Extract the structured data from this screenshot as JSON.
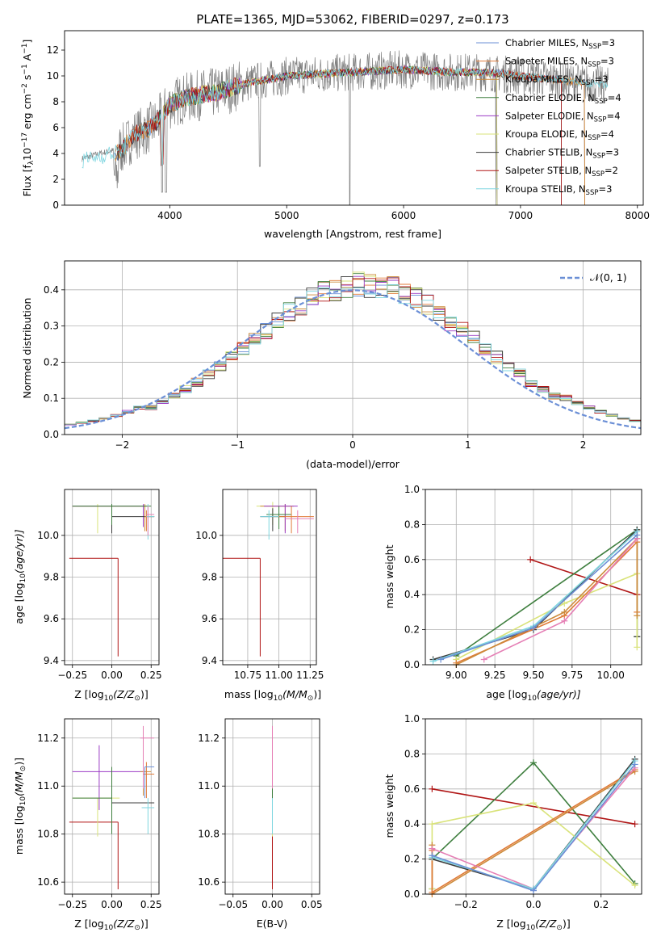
{
  "colors": {
    "miles_chabrier": "#6b8fd6",
    "miles_salpeter": "#e07b39",
    "miles_kroupa": "#cc8a3a",
    "elodie_chabrier": "#3f7f3f",
    "elodie_salpeter": "#9b3cc4",
    "elodie_kroupa": "#d9e37a",
    "stelib_chabrier": "#3c3c3c",
    "stelib_salpeter": "#b01515",
    "stelib_kroupa": "#7fd6e0",
    "data_grey": "#7f7f7f",
    "pink": "#e57fb5"
  },
  "chart_data": [
    {
      "id": "spectrum",
      "type": "line",
      "title": "PLATE=1365, MJD=53062, FIBERID=0297, z=0.173",
      "xlabel": "wavelength [Angstrom, rest frame]",
      "ylabel_main": "Flux [f",
      "ylabel_sub": "λ",
      "ylabel_rest": "10",
      "ylabel_sup1": "−17",
      "ylabel_tail": " erg cm",
      "ylabel_sup2": "−2",
      "ylabel_s": " s",
      "ylabel_sup3": "−1",
      "ylabel_A": " A",
      "ylabel_sup4": "−1",
      "ylabel_end": "]",
      "xlim": [
        3100,
        8050
      ],
      "ylim": [
        0,
        13.5
      ],
      "xticks": [
        "4000",
        "5000",
        "6000",
        "7000",
        "8000"
      ],
      "xtick_values": [
        4000,
        5000,
        6000,
        7000,
        8000
      ],
      "yticks": [
        "0",
        "2",
        "4",
        "6",
        "8",
        "10",
        "12"
      ],
      "ytick_values": [
        0,
        2,
        4,
        6,
        8,
        10,
        12
      ],
      "legend": [
        {
          "base": "Chabrier MILES, N",
          "sub": "SSP",
          "tail": "=3"
        },
        {
          "base": "Salpeter MILES, N",
          "sub": "SSP",
          "tail": "=3"
        },
        {
          "base": "Kroupa MILES, N",
          "sub": "SSP",
          "tail": "=3"
        },
        {
          "base": "Chabrier ELODIE, N",
          "sub": "SSP",
          "tail": "=4"
        },
        {
          "base": "Salpeter ELODIE, N",
          "sub": "SSP",
          "tail": "=4"
        },
        {
          "base": "Kroupa ELODIE, N",
          "sub": "SSP",
          "tail": "=4"
        },
        {
          "base": "Chabrier STELIB, N",
          "sub": "SSP",
          "tail": "=3"
        },
        {
          "base": "Salpeter STELIB, N",
          "sub": "SSP",
          "tail": "=2"
        },
        {
          "base": "Kroupa STELIB, N",
          "sub": "SSP",
          "tail": "=3"
        }
      ],
      "continuum": [
        [
          3250,
          3.6
        ],
        [
          3400,
          4.0
        ],
        [
          3500,
          4.2
        ],
        [
          3600,
          4.4
        ],
        [
          3700,
          5.5
        ],
        [
          3800,
          5.8
        ],
        [
          3900,
          6.5
        ],
        [
          4000,
          7.8
        ],
        [
          4100,
          8.2
        ],
        [
          4200,
          8.4
        ],
        [
          4300,
          8.6
        ],
        [
          4400,
          8.7
        ],
        [
          4500,
          9.0
        ],
        [
          4600,
          9.3
        ],
        [
          4700,
          9.5
        ],
        [
          4800,
          9.7
        ],
        [
          4900,
          9.8
        ],
        [
          5000,
          10.0
        ],
        [
          5200,
          10.1
        ],
        [
          5400,
          10.2
        ],
        [
          5600,
          10.3
        ],
        [
          5800,
          10.4
        ],
        [
          6000,
          10.5
        ],
        [
          6200,
          10.4
        ],
        [
          6400,
          10.3
        ],
        [
          6600,
          10.3
        ],
        [
          6800,
          10.2
        ],
        [
          7000,
          10.0
        ],
        [
          7200,
          9.8
        ],
        [
          7400,
          9.6
        ],
        [
          7600,
          9.4
        ],
        [
          7750,
          9.2
        ]
      ]
    },
    {
      "id": "histogram",
      "type": "bar",
      "xlabel": "(data-model)/error",
      "ylabel": "Normed distribution",
      "xlim": [
        -2.5,
        2.5
      ],
      "ylim": [
        0,
        0.48
      ],
      "xticks": [
        "−2",
        "−1",
        "0",
        "1",
        "2"
      ],
      "xtick_values": [
        -2,
        -1,
        0,
        1,
        2
      ],
      "yticks": [
        "0.0",
        "0.1",
        "0.2",
        "0.3",
        "0.4"
      ],
      "ytick_values": [
        0,
        0.1,
        0.2,
        0.3,
        0.4
      ],
      "legend": {
        "label": "𝒩(0, 1)"
      },
      "bin_width": 0.1,
      "bin_start": -2.5
    },
    {
      "id": "age-Z",
      "type": "scatter",
      "xlabel_main": "Z [log",
      "xlabel_sub": "10",
      "xlabel_tail": "(Z/Z",
      "xlabel_sun": "⊙",
      "xlabel_end": ")]",
      "ylabel_main": "age  [log",
      "ylabel_sub": "10",
      "ylabel_tail": "(age/yr)]",
      "xlim": [
        -0.3,
        0.3
      ],
      "ylim": [
        9.38,
        10.22
      ],
      "xticks": [
        "−0.25",
        "0.00",
        "0.25"
      ],
      "xtick_values": [
        -0.25,
        0.0,
        0.25
      ],
      "yticks": [
        "9.4",
        "9.6",
        "9.8",
        "10.0"
      ],
      "ytick_values": [
        9.4,
        9.6,
        9.8,
        10.0
      ]
    },
    {
      "id": "age-mass",
      "type": "scatter",
      "xlabel_main": "mass [log",
      "xlabel_sub": "10",
      "xlabel_tail": "(M/M",
      "xlabel_sun": "⊙",
      "xlabel_end": ")]",
      "xlim": [
        10.55,
        11.3
      ],
      "ylim": [
        9.38,
        10.22
      ],
      "xticks": [
        "10.75",
        "11.00",
        "11.25"
      ],
      "xtick_values": [
        10.75,
        11.0,
        11.25
      ],
      "yticks": [
        "9.4",
        "9.6",
        "9.8",
        "10.0"
      ],
      "ytick_values": [
        9.4,
        9.6,
        9.8,
        10.0
      ]
    },
    {
      "id": "weight-age",
      "type": "line",
      "xlabel_main": "age  [log",
      "xlabel_sub": "10",
      "xlabel_tail": "(age/yr)]",
      "ylabel": "mass weight",
      "xlim": [
        8.8,
        10.2
      ],
      "ylim": [
        0,
        1
      ],
      "xticks": [
        "9.00",
        "9.25",
        "9.50",
        "9.75",
        "10.00"
      ],
      "xtick_values": [
        9.0,
        9.25,
        9.5,
        9.75,
        10.0
      ],
      "yticks": [
        "0.0",
        "0.2",
        "0.4",
        "0.6",
        "0.8",
        "1.0"
      ],
      "ytick_values": [
        0,
        0.2,
        0.4,
        0.6,
        0.8,
        1.0
      ]
    },
    {
      "id": "mass-Z",
      "type": "scatter",
      "xlabel_main": "Z [log",
      "xlabel_sub": "10",
      "xlabel_tail": "(Z/Z",
      "xlabel_sun": "⊙",
      "xlabel_end": ")]",
      "ylabel_main": "mass [log",
      "ylabel_sub": "10",
      "ylabel_tail": "(M/M",
      "ylabel_sun": "⊙",
      "ylabel_end": ")]",
      "xlim": [
        -0.3,
        0.3
      ],
      "ylim": [
        10.55,
        11.28
      ],
      "xticks": [
        "−0.25",
        "0.00",
        "0.25"
      ],
      "xtick_values": [
        -0.25,
        0.0,
        0.25
      ],
      "yticks": [
        "10.6",
        "10.8",
        "11.0",
        "11.2"
      ],
      "ytick_values": [
        10.6,
        10.8,
        11.0,
        11.2
      ]
    },
    {
      "id": "mass-EBV",
      "type": "scatter",
      "xlabel": "E(B-V)",
      "xlim": [
        -0.06,
        0.06
      ],
      "ylim": [
        10.55,
        11.28
      ],
      "xticks": [
        "−0.05",
        "0.00",
        "0.05"
      ],
      "xtick_values": [
        -0.05,
        0.0,
        0.05
      ],
      "yticks": [
        "10.6",
        "10.8",
        "11.0",
        "11.2"
      ],
      "ytick_values": [
        10.6,
        10.8,
        11.0,
        11.2
      ]
    },
    {
      "id": "weight-Z",
      "type": "line",
      "xlabel_main": "Z [log",
      "xlabel_sub": "10",
      "xlabel_tail": "(Z/Z",
      "xlabel_sun": "⊙",
      "xlabel_end": ")]",
      "ylabel": "mass weight",
      "xlim": [
        -0.32,
        0.32
      ],
      "ylim": [
        0,
        1
      ],
      "xticks": [
        "−0.2",
        "0.0",
        "0.2"
      ],
      "xtick_values": [
        -0.2,
        0.0,
        0.2
      ],
      "yticks": [
        "0.0",
        "0.2",
        "0.4",
        "0.6",
        "0.8",
        "1.0"
      ],
      "ytick_values": [
        0,
        0.2,
        0.4,
        0.6,
        0.8,
        1.0
      ]
    }
  ]
}
